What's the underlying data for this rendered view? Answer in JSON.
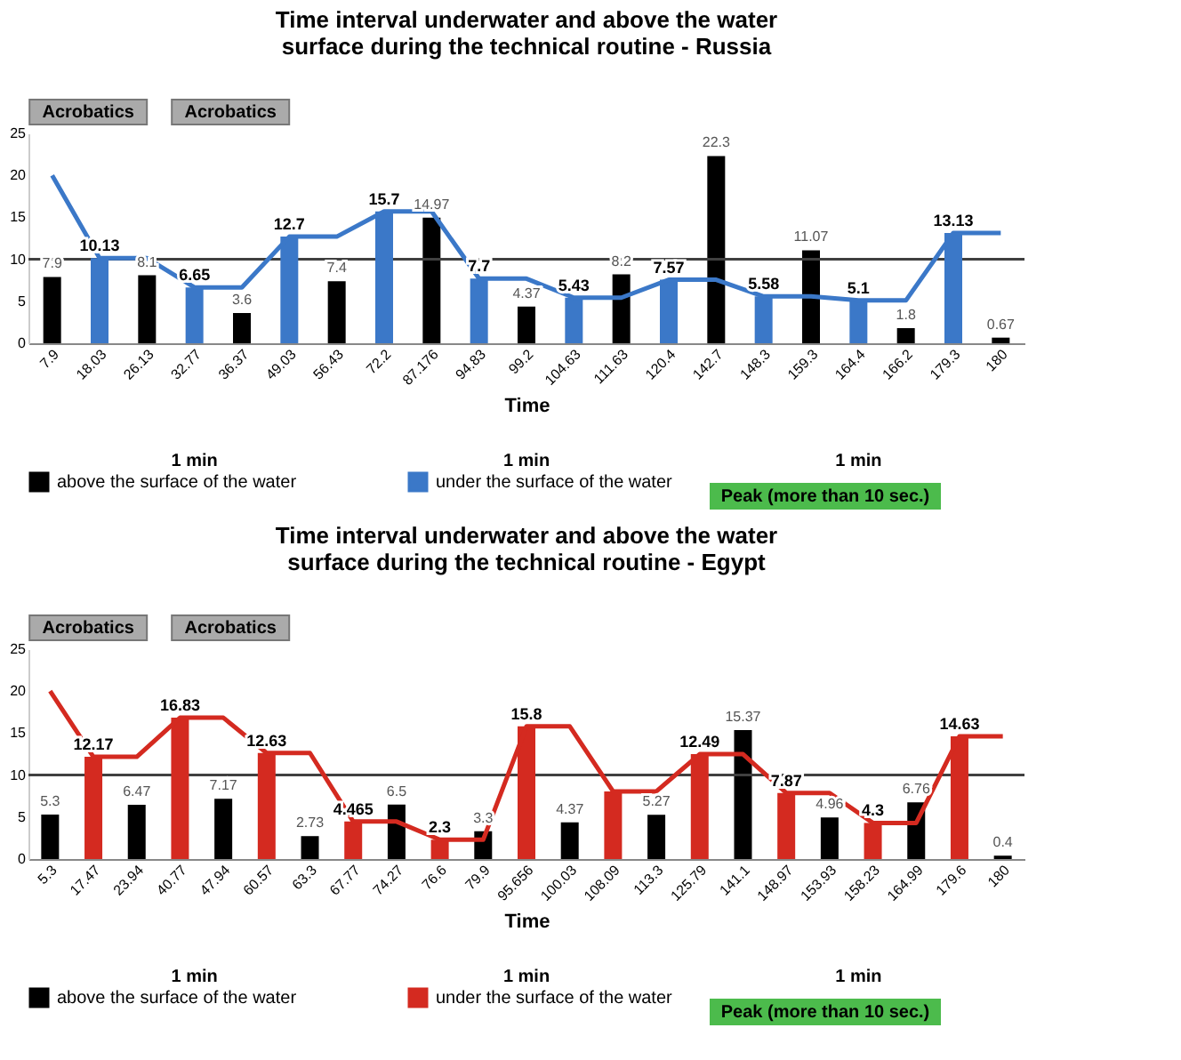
{
  "chart_data": [
    {
      "type": "bar",
      "title": "Time interval underwater and above the water  surface during the technical routine - Russia",
      "xlabel": "Time",
      "categories": [
        "7.9",
        "18.03",
        "26.13",
        "32.77",
        "36.37",
        "49.03",
        "56.43",
        "72.2",
        "87.176",
        "94.83",
        "99.2",
        "104.63",
        "111.63",
        "120.4",
        "142.7",
        "148.3",
        "159.3",
        "164.4",
        "166.2",
        "179.3",
        "180"
      ],
      "series": [
        {
          "type": "bar",
          "name": "above the surface of the water",
          "color": "#000000",
          "values": [
            7.9,
            null,
            8.1,
            null,
            3.6,
            null,
            7.4,
            null,
            14.97,
            null,
            4.37,
            null,
            8.2,
            null,
            22.3,
            null,
            11.07,
            null,
            1.8,
            null,
            0.67
          ],
          "value_labels": [
            "7.9",
            null,
            "8.1",
            null,
            "3.6",
            null,
            "7.4",
            null,
            "14.97",
            null,
            "4.37",
            null,
            "8.2",
            null,
            "22.3",
            null,
            "11.07",
            null,
            "1.8",
            null,
            "0.67"
          ]
        },
        {
          "type": "bar",
          "color": "#3b78c8",
          "values": [
            null,
            10.13,
            null,
            6.65,
            null,
            12.7,
            null,
            15.7,
            null,
            7.7,
            null,
            5.43,
            null,
            7.57,
            null,
            5.58,
            null,
            5.1,
            null,
            13.13,
            null
          ],
          "value_labels": [
            null,
            "10.13",
            null,
            "6.65",
            null,
            "12.7",
            null,
            "15.7",
            null,
            "7.7",
            null,
            "5.43",
            null,
            "7.57",
            null,
            "5.58",
            null,
            "5.1",
            null,
            "13.13",
            null
          ]
        },
        {
          "type": "line",
          "name": "under the surface of the water",
          "color": "#3b78c8",
          "values": [
            20,
            10.13,
            10.13,
            6.65,
            6.65,
            12.7,
            12.7,
            15.7,
            15.7,
            7.7,
            7.7,
            5.43,
            5.43,
            7.57,
            7.57,
            5.58,
            5.58,
            5.1,
            5.1,
            13.13,
            13.13
          ]
        }
      ],
      "ylim": [
        0,
        25
      ],
      "yticks": [
        0,
        5,
        10,
        15,
        20,
        25
      ],
      "legend": "bottom",
      "line_style": "solid",
      "ref_lines": [
        {
          "axis": "y",
          "value": 10,
          "color": "#404040"
        }
      ],
      "annotations": [
        "1 min",
        "1 min",
        "1 min",
        "Peak (more than 10 sec.)",
        "Acrobatics",
        "Acrobatics"
      ]
    },
    {
      "type": "bar",
      "title": "Time interval underwater and above the water surface during the technical routine - Egypt",
      "xlabel": "Time",
      "categories": [
        "5.3",
        "17.47",
        "23.94",
        "40.77",
        "47.94",
        "60.57",
        "63.3",
        "67.77",
        "74.27",
        "76.6",
        "79.9",
        "95.656",
        "100.03",
        "108.09",
        "113.3",
        "125.79",
        "141.1",
        "148.97",
        "153.93",
        "158.23",
        "164.99",
        "179.6",
        "180"
      ],
      "series": [
        {
          "type": "bar",
          "name": "above the surface of the water",
          "color": "#000000",
          "values": [
            5.3,
            null,
            6.47,
            null,
            7.17,
            null,
            2.73,
            null,
            6.5,
            null,
            3.3,
            null,
            4.37,
            null,
            5.27,
            null,
            15.37,
            null,
            4.96,
            null,
            6.76,
            null,
            0.4
          ],
          "value_labels": [
            "5.3",
            null,
            "6.47",
            null,
            "7.17",
            null,
            "2.73",
            null,
            "6.5",
            null,
            "3.3",
            null,
            "4.37",
            null,
            "5.27",
            null,
            "15.37",
            null,
            "4.96",
            null,
            "6.76",
            null,
            "0.4"
          ]
        },
        {
          "type": "bar",
          "color": "#d42a20",
          "values": [
            null,
            12.17,
            null,
            16.83,
            null,
            12.63,
            null,
            4.465,
            null,
            2.3,
            null,
            15.8,
            null,
            8.06,
            null,
            12.49,
            null,
            7.87,
            null,
            4.3,
            null,
            14.63,
            null
          ],
          "value_labels": [
            null,
            "12.17",
            null,
            "16.83",
            null,
            "12.63",
            null,
            "4.465",
            null,
            "2.3",
            null,
            "15.8",
            null,
            null,
            null,
            "12.49",
            null,
            "7.87",
            null,
            "4.3",
            null,
            "14.63",
            null
          ]
        },
        {
          "type": "line",
          "name": "under the surface of the water",
          "color": "#d42a20",
          "values": [
            20,
            12.17,
            12.17,
            16.83,
            16.83,
            12.63,
            12.63,
            4.465,
            4.465,
            2.3,
            2.3,
            15.8,
            15.8,
            8.06,
            8.06,
            12.49,
            12.49,
            7.87,
            7.87,
            4.3,
            4.3,
            14.63,
            14.63
          ]
        }
      ],
      "ylim": [
        0,
        25
      ],
      "yticks": [
        0,
        5,
        10,
        15,
        20,
        25
      ],
      "legend": "bottom",
      "line_style": "solid",
      "ref_lines": [
        {
          "axis": "y",
          "value": 10,
          "color": "#404040"
        }
      ],
      "annotations": [
        "1 min",
        "1 min",
        "1 min",
        "Peak (more than 10 sec.)",
        "Acrobatics",
        "Acrobatics"
      ]
    }
  ]
}
